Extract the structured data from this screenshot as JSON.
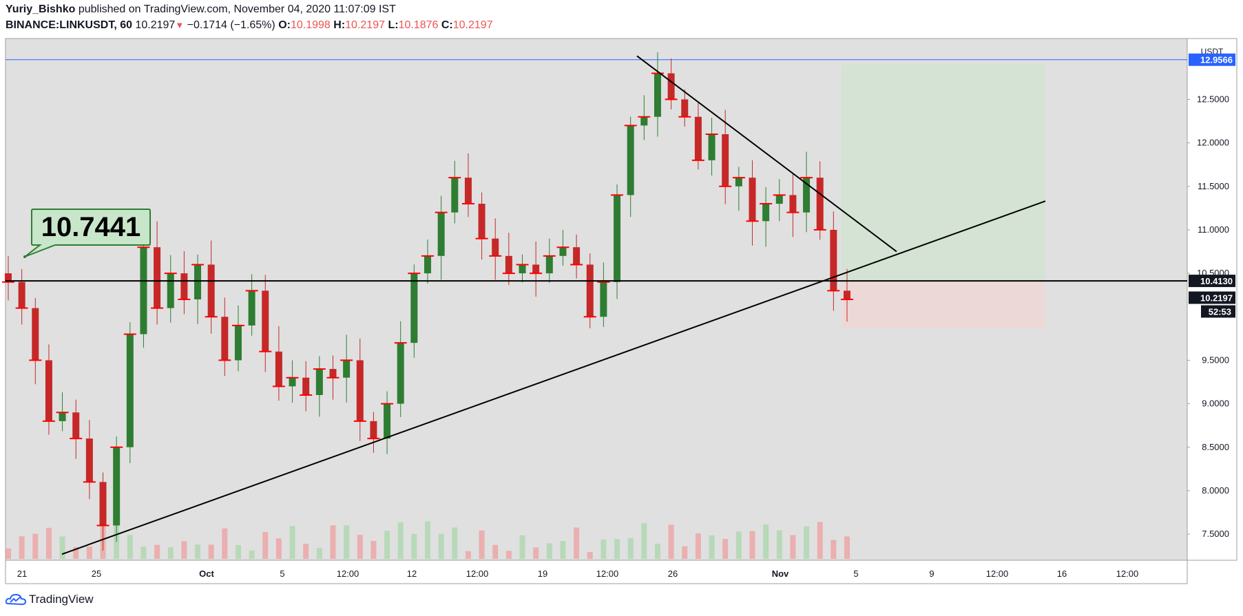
{
  "header": {
    "author": "Yuriy_Bishko",
    "published": "published on TradingView.com, November 04, 2020 11:07:09 IST",
    "symbol": "BINANCE:LINKUSDT, 60",
    "last": "10.2197",
    "change_arrow": "▼",
    "change": "−0.1714 (−1.65%)",
    "o_label": "O:",
    "o": "10.1998",
    "h_label": "H:",
    "h": "10.2197",
    "l_label": "L:",
    "l": "10.1876",
    "c_label": "C:",
    "c": "10.2197"
  },
  "footer": {
    "brand": "TradingView"
  },
  "colors": {
    "plot_bg": "#e0e0e0",
    "candle_up": "#2e7d32",
    "candle_down": "#c62828",
    "trend_line": "#000000",
    "horizontal_line": "#2962ff",
    "profit_zone": "#d1e3d1",
    "loss_zone": "#eed6d6",
    "volume_up": "#a5d6a7",
    "volume_down": "#ef9a9a",
    "price_tag_dark": "#131722",
    "price_tag_blue": "#2962ff",
    "callout_fill": "#c8e6c9",
    "callout_border": "#2e7d32",
    "level_marker": "#ff0000"
  },
  "chart_data": {
    "type": "candlestick",
    "title": "BINANCE:LINKUSDT, 60",
    "currency": "USDT",
    "ylim": [
      7.2,
      13.2
    ],
    "x_ticks": [
      "21",
      "25",
      "Oct",
      "5",
      "12:00",
      "12",
      "12:00",
      "19",
      "12:00",
      "26",
      "Nov",
      "5",
      "9",
      "12:00",
      "16",
      "12:00"
    ],
    "y_ticks": [
      "7.5000",
      "8.0000",
      "8.5000",
      "9.0000",
      "9.5000",
      "10.5000",
      "11.0000",
      "11.5000",
      "12.0000",
      "12.5000"
    ],
    "price_tags": {
      "horizontal_level": "12.9566",
      "resistance_level": "10.4130",
      "last_price": "10.2197",
      "countdown": "52:53"
    },
    "callout_label": "10.7441",
    "series": [
      {
        "values": [
          10.4,
          10.1,
          9.5,
          8.8,
          8.9,
          8.6,
          8.1,
          7.6,
          8.5,
          9.8,
          10.8,
          10.1,
          10.5,
          10.2,
          10.6,
          10.0,
          9.5,
          9.9,
          10.3,
          9.6,
          9.2,
          9.3,
          9.1,
          9.4,
          9.3,
          9.5,
          8.8,
          8.6,
          9.0,
          9.7,
          10.5,
          10.7,
          11.2,
          11.6,
          11.3,
          10.9,
          10.7,
          10.5,
          10.6,
          10.5,
          10.7,
          10.8,
          10.6,
          10.0,
          10.4,
          11.4,
          12.2,
          12.3,
          12.8,
          12.5,
          12.3,
          11.8,
          12.1,
          11.5,
          11.6,
          11.1,
          11.3,
          11.4,
          11.2,
          11.6,
          11.0,
          10.3,
          10.2
        ]
      }
    ]
  }
}
